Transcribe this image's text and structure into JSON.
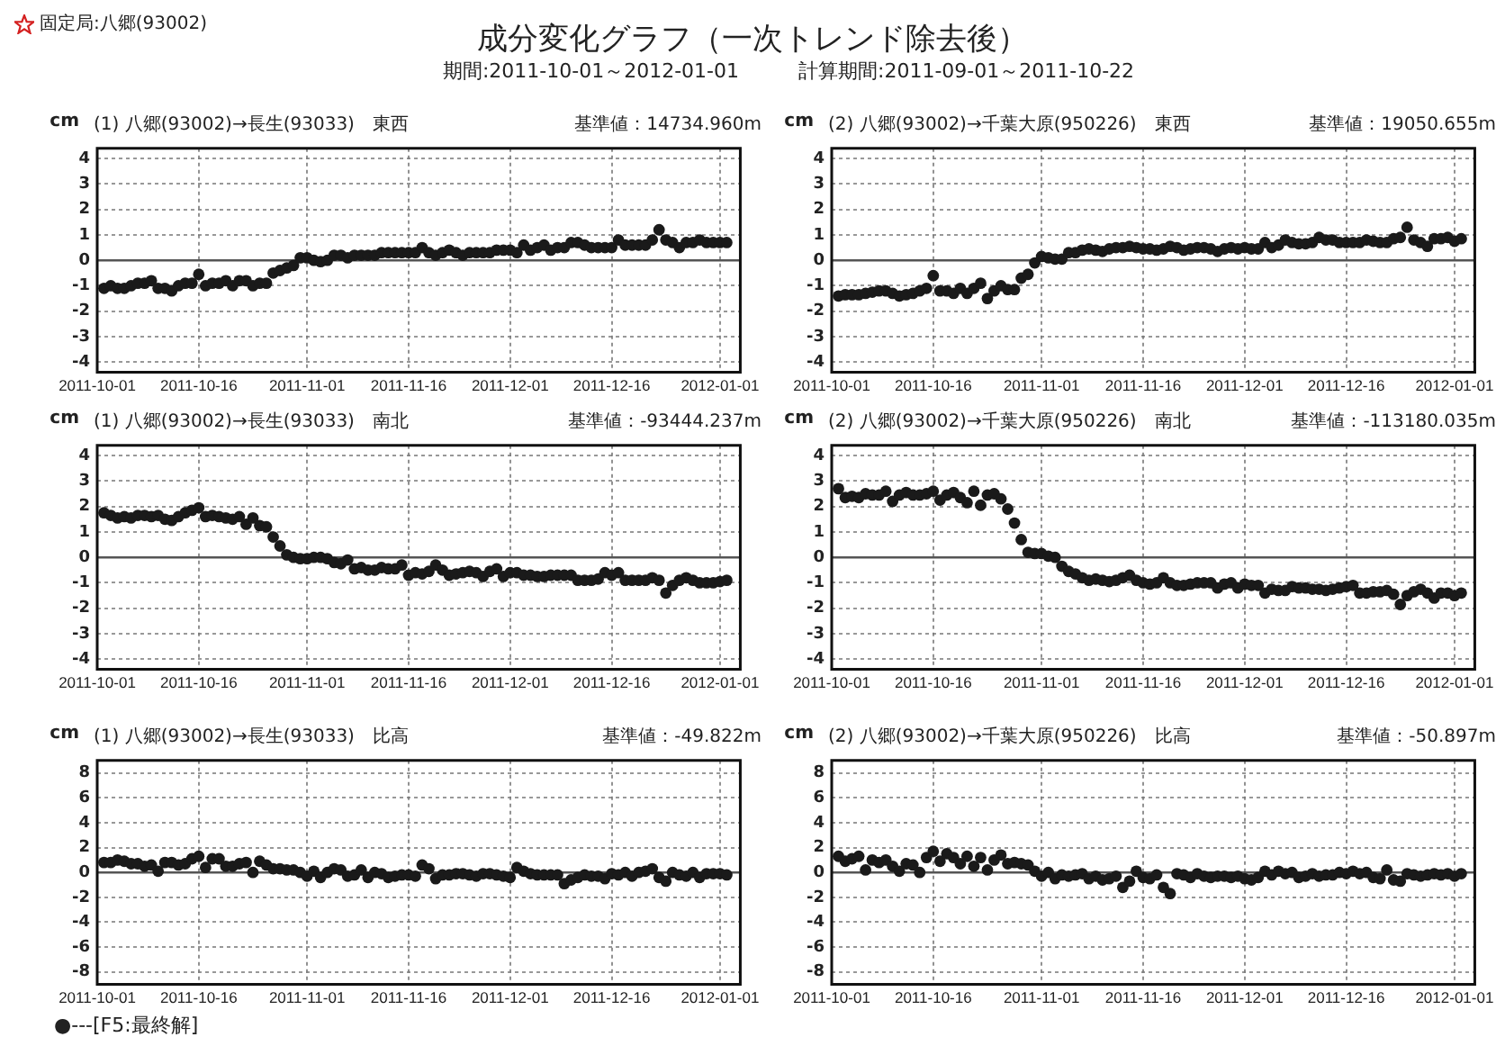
{
  "chart_data": [
    {
      "type": "other",
      "title": "成分変化グラフ（一次トレンド除去後）",
      "subtitle": "期間:2011-10-01～2012-01-01　　　計算期間:2011-09-01～2011-10-22",
      "annotations": [
        "固定局:八郷(93002)",
        "●---[F5:最終解]"
      ]
    },
    {
      "type": "scatter",
      "title": "(1) 八郷(93002)→長生(93033)　東西",
      "subtitle": "基準値：14734.960m",
      "ylabel": "cm",
      "color": "#1a1a1a",
      "marker": "circle",
      "grid": true,
      "ref_lines": [
        {
          "axis": "y",
          "value": 0,
          "color": "#555555"
        }
      ],
      "xlim": [
        "2011-10-01",
        "2012-01-04"
      ],
      "xticks": [
        "2011-10-01",
        "2011-10-16",
        "2011-11-01",
        "2011-11-16",
        "2011-12-01",
        "2011-12-16",
        "2012-01-01"
      ],
      "ylim": [
        -4.4,
        4.4
      ],
      "yticks": [
        -4,
        -3,
        -2,
        -1,
        0,
        1,
        2,
        3,
        4
      ],
      "x": [
        "2011-10-02",
        "2011-10-03",
        "2011-10-04",
        "2011-10-05",
        "2011-10-06",
        "2011-10-07",
        "2011-10-08",
        "2011-10-09",
        "2011-10-10",
        "2011-10-11",
        "2011-10-12",
        "2011-10-13",
        "2011-10-14",
        "2011-10-15",
        "2011-10-16",
        "2011-10-17",
        "2011-10-18",
        "2011-10-19",
        "2011-10-20",
        "2011-10-21",
        "2011-10-22",
        "2011-10-23",
        "2011-10-24",
        "2011-10-25",
        "2011-10-26",
        "2011-10-27",
        "2011-10-28",
        "2011-10-29",
        "2011-10-30",
        "2011-10-31",
        "2011-11-01",
        "2011-11-02",
        "2011-11-03",
        "2011-11-04",
        "2011-11-05",
        "2011-11-06",
        "2011-11-07",
        "2011-11-08",
        "2011-11-09",
        "2011-11-10",
        "2011-11-11",
        "2011-11-12",
        "2011-11-13",
        "2011-11-14",
        "2011-11-15",
        "2011-11-16",
        "2011-11-17",
        "2011-11-18",
        "2011-11-19",
        "2011-11-20",
        "2011-11-21",
        "2011-11-22",
        "2011-11-23",
        "2011-11-24",
        "2011-11-25",
        "2011-11-26",
        "2011-11-27",
        "2011-11-28",
        "2011-11-29",
        "2011-11-30",
        "2011-12-01",
        "2011-12-02",
        "2011-12-03",
        "2011-12-04",
        "2011-12-05",
        "2011-12-06",
        "2011-12-07",
        "2011-12-08",
        "2011-12-09",
        "2011-12-10",
        "2011-12-11",
        "2011-12-12",
        "2011-12-13",
        "2011-12-14",
        "2011-12-15",
        "2011-12-16",
        "2011-12-17",
        "2011-12-18",
        "2011-12-19",
        "2011-12-20",
        "2011-12-21",
        "2011-12-22",
        "2011-12-23",
        "2011-12-24",
        "2011-12-25",
        "2011-12-26",
        "2011-12-27",
        "2011-12-28",
        "2011-12-29",
        "2011-12-30",
        "2011-12-31",
        "2012-01-01",
        "2012-01-02"
      ],
      "values": [
        -1.1,
        -1.0,
        -1.1,
        -1.1,
        -1.0,
        -0.9,
        -0.9,
        -0.8,
        -1.1,
        -1.1,
        -1.2,
        -1.0,
        -0.9,
        -0.9,
        -0.55,
        -1.0,
        -0.9,
        -0.9,
        -0.8,
        -1.0,
        -0.8,
        -0.8,
        -1.0,
        -0.9,
        -0.9,
        -0.5,
        -0.4,
        -0.3,
        -0.2,
        0.1,
        0.1,
        0.0,
        -0.05,
        0.0,
        0.2,
        0.2,
        0.1,
        0.2,
        0.2,
        0.2,
        0.2,
        0.3,
        0.3,
        0.3,
        0.3,
        0.3,
        0.3,
        0.5,
        0.3,
        0.2,
        0.3,
        0.4,
        0.3,
        0.2,
        0.3,
        0.3,
        0.3,
        0.3,
        0.4,
        0.4,
        0.4,
        0.3,
        0.6,
        0.4,
        0.5,
        0.6,
        0.4,
        0.5,
        0.5,
        0.7,
        0.7,
        0.6,
        0.5,
        0.5,
        0.5,
        0.5,
        0.8,
        0.6,
        0.6,
        0.6,
        0.6,
        0.8,
        1.2,
        0.8,
        0.7,
        0.5,
        0.7,
        0.7,
        0.8,
        0.7,
        0.7,
        0.7,
        0.7
      ]
    },
    {
      "type": "scatter",
      "title": "(2) 八郷(93002)→千葉大原(950226)　東西",
      "subtitle": "基準値：19050.655m",
      "ylabel": "cm",
      "color": "#1a1a1a",
      "marker": "circle",
      "grid": true,
      "ref_lines": [
        {
          "axis": "y",
          "value": 0,
          "color": "#555555"
        }
      ],
      "xlim": [
        "2011-10-01",
        "2012-01-04"
      ],
      "xticks": [
        "2011-10-01",
        "2011-10-16",
        "2011-11-01",
        "2011-11-16",
        "2011-12-01",
        "2011-12-16",
        "2012-01-01"
      ],
      "ylim": [
        -4.4,
        4.4
      ],
      "yticks": [
        -4,
        -3,
        -2,
        -1,
        0,
        1,
        2,
        3,
        4
      ],
      "x": [
        "2011-10-02",
        "2011-10-03",
        "2011-10-04",
        "2011-10-05",
        "2011-10-06",
        "2011-10-07",
        "2011-10-08",
        "2011-10-09",
        "2011-10-10",
        "2011-10-11",
        "2011-10-12",
        "2011-10-13",
        "2011-10-14",
        "2011-10-15",
        "2011-10-16",
        "2011-10-17",
        "2011-10-18",
        "2011-10-19",
        "2011-10-20",
        "2011-10-21",
        "2011-10-22",
        "2011-10-23",
        "2011-10-24",
        "2011-10-25",
        "2011-10-26",
        "2011-10-27",
        "2011-10-28",
        "2011-10-29",
        "2011-10-30",
        "2011-10-31",
        "2011-11-01",
        "2011-11-02",
        "2011-11-03",
        "2011-11-04",
        "2011-11-05",
        "2011-11-06",
        "2011-11-07",
        "2011-11-08",
        "2011-11-09",
        "2011-11-10",
        "2011-11-11",
        "2011-11-12",
        "2011-11-13",
        "2011-11-14",
        "2011-11-15",
        "2011-11-16",
        "2011-11-17",
        "2011-11-18",
        "2011-11-19",
        "2011-11-20",
        "2011-11-21",
        "2011-11-22",
        "2011-11-23",
        "2011-11-24",
        "2011-11-25",
        "2011-11-26",
        "2011-11-27",
        "2011-11-28",
        "2011-11-29",
        "2011-11-30",
        "2011-12-01",
        "2011-12-02",
        "2011-12-03",
        "2011-12-04",
        "2011-12-05",
        "2011-12-06",
        "2011-12-07",
        "2011-12-08",
        "2011-12-09",
        "2011-12-10",
        "2011-12-11",
        "2011-12-12",
        "2011-12-13",
        "2011-12-14",
        "2011-12-15",
        "2011-12-16",
        "2011-12-17",
        "2011-12-18",
        "2011-12-19",
        "2011-12-20",
        "2011-12-21",
        "2011-12-22",
        "2011-12-23",
        "2011-12-24",
        "2011-12-25",
        "2011-12-26",
        "2011-12-27",
        "2011-12-28",
        "2011-12-29",
        "2011-12-30",
        "2011-12-31",
        "2012-01-01",
        "2012-01-02"
      ],
      "values": [
        -1.4,
        -1.35,
        -1.35,
        -1.35,
        -1.3,
        -1.25,
        -1.2,
        -1.2,
        -1.3,
        -1.4,
        -1.35,
        -1.3,
        -1.2,
        -1.1,
        -0.6,
        -1.2,
        -1.2,
        -1.3,
        -1.1,
        -1.3,
        -1.1,
        -0.9,
        -1.5,
        -1.2,
        -1.0,
        -1.15,
        -1.15,
        -0.7,
        -0.55,
        -0.1,
        0.15,
        0.1,
        0.05,
        0.05,
        0.3,
        0.3,
        0.4,
        0.45,
        0.4,
        0.35,
        0.45,
        0.5,
        0.5,
        0.55,
        0.5,
        0.45,
        0.45,
        0.4,
        0.45,
        0.55,
        0.5,
        0.4,
        0.45,
        0.5,
        0.5,
        0.45,
        0.35,
        0.45,
        0.5,
        0.45,
        0.5,
        0.45,
        0.45,
        0.7,
        0.5,
        0.6,
        0.8,
        0.7,
        0.65,
        0.65,
        0.7,
        0.9,
        0.8,
        0.8,
        0.7,
        0.7,
        0.7,
        0.7,
        0.8,
        0.75,
        0.7,
        0.7,
        0.85,
        0.9,
        1.3,
        0.8,
        0.7,
        0.55,
        0.85,
        0.85,
        0.9,
        0.75,
        0.85
      ]
    },
    {
      "type": "scatter",
      "title": "(1) 八郷(93002)→長生(93033)　南北",
      "subtitle": "基準値：-93444.237m",
      "ylabel": "cm",
      "color": "#1a1a1a",
      "marker": "circle",
      "grid": true,
      "ref_lines": [
        {
          "axis": "y",
          "value": 0,
          "color": "#555555"
        }
      ],
      "xlim": [
        "2011-10-01",
        "2012-01-04"
      ],
      "xticks": [
        "2011-10-01",
        "2011-10-16",
        "2011-11-01",
        "2011-11-16",
        "2011-12-01",
        "2011-12-16",
        "2012-01-01"
      ],
      "ylim": [
        -4.4,
        4.4
      ],
      "yticks": [
        -4,
        -3,
        -2,
        -1,
        0,
        1,
        2,
        3,
        4
      ],
      "x": [
        "2011-10-02",
        "2011-10-03",
        "2011-10-04",
        "2011-10-05",
        "2011-10-06",
        "2011-10-07",
        "2011-10-08",
        "2011-10-09",
        "2011-10-10",
        "2011-10-11",
        "2011-10-12",
        "2011-10-13",
        "2011-10-14",
        "2011-10-15",
        "2011-10-16",
        "2011-10-17",
        "2011-10-18",
        "2011-10-19",
        "2011-10-20",
        "2011-10-21",
        "2011-10-22",
        "2011-10-23",
        "2011-10-24",
        "2011-10-25",
        "2011-10-26",
        "2011-10-27",
        "2011-10-28",
        "2011-10-29",
        "2011-10-30",
        "2011-10-31",
        "2011-11-01",
        "2011-11-02",
        "2011-11-03",
        "2011-11-04",
        "2011-11-05",
        "2011-11-06",
        "2011-11-07",
        "2011-11-08",
        "2011-11-09",
        "2011-11-10",
        "2011-11-11",
        "2011-11-12",
        "2011-11-13",
        "2011-11-14",
        "2011-11-15",
        "2011-11-16",
        "2011-11-17",
        "2011-11-18",
        "2011-11-19",
        "2011-11-20",
        "2011-11-21",
        "2011-11-22",
        "2011-11-23",
        "2011-11-24",
        "2011-11-25",
        "2011-11-26",
        "2011-11-27",
        "2011-11-28",
        "2011-11-29",
        "2011-11-30",
        "2011-12-01",
        "2011-12-02",
        "2011-12-03",
        "2011-12-04",
        "2011-12-05",
        "2011-12-06",
        "2011-12-07",
        "2011-12-08",
        "2011-12-09",
        "2011-12-10",
        "2011-12-11",
        "2011-12-12",
        "2011-12-13",
        "2011-12-14",
        "2011-12-15",
        "2011-12-16",
        "2011-12-17",
        "2011-12-18",
        "2011-12-19",
        "2011-12-20",
        "2011-12-21",
        "2011-12-22",
        "2011-12-23",
        "2011-12-24",
        "2011-12-25",
        "2011-12-26",
        "2011-12-27",
        "2011-12-28",
        "2011-12-29",
        "2011-12-30",
        "2011-12-31",
        "2012-01-01",
        "2012-01-02"
      ],
      "values": [
        1.75,
        1.65,
        1.55,
        1.6,
        1.55,
        1.65,
        1.65,
        1.6,
        1.65,
        1.5,
        1.45,
        1.6,
        1.75,
        1.85,
        1.95,
        1.6,
        1.65,
        1.6,
        1.55,
        1.5,
        1.6,
        1.3,
        1.55,
        1.25,
        1.2,
        0.8,
        0.45,
        0.1,
        0.0,
        -0.05,
        -0.05,
        0.0,
        0.0,
        -0.05,
        -0.2,
        -0.25,
        -0.1,
        -0.45,
        -0.4,
        -0.5,
        -0.5,
        -0.4,
        -0.45,
        -0.45,
        -0.3,
        -0.7,
        -0.6,
        -0.65,
        -0.55,
        -0.3,
        -0.5,
        -0.7,
        -0.65,
        -0.6,
        -0.55,
        -0.6,
        -0.75,
        -0.55,
        -0.45,
        -0.75,
        -0.6,
        -0.6,
        -0.7,
        -0.7,
        -0.75,
        -0.75,
        -0.7,
        -0.7,
        -0.7,
        -0.7,
        -0.9,
        -0.9,
        -0.9,
        -0.85,
        -0.6,
        -0.7,
        -0.6,
        -0.9,
        -0.9,
        -0.9,
        -0.9,
        -0.8,
        -0.9,
        -1.4,
        -1.1,
        -0.9,
        -0.8,
        -0.9,
        -1.0,
        -1.0,
        -1.0,
        -0.95,
        -0.9
      ]
    },
    {
      "type": "scatter",
      "title": "(2) 八郷(93002)→千葉大原(950226)　南北",
      "subtitle": "基準値：-113180.035m",
      "ylabel": "cm",
      "color": "#1a1a1a",
      "marker": "circle",
      "grid": true,
      "ref_lines": [
        {
          "axis": "y",
          "value": 0,
          "color": "#555555"
        }
      ],
      "xlim": [
        "2011-10-01",
        "2012-01-04"
      ],
      "xticks": [
        "2011-10-01",
        "2011-10-16",
        "2011-11-01",
        "2011-11-16",
        "2011-12-01",
        "2011-12-16",
        "2012-01-01"
      ],
      "ylim": [
        -4.4,
        4.4
      ],
      "yticks": [
        -4,
        -3,
        -2,
        -1,
        0,
        1,
        2,
        3,
        4
      ],
      "x": [
        "2011-10-02",
        "2011-10-03",
        "2011-10-04",
        "2011-10-05",
        "2011-10-06",
        "2011-10-07",
        "2011-10-08",
        "2011-10-09",
        "2011-10-10",
        "2011-10-11",
        "2011-10-12",
        "2011-10-13",
        "2011-10-14",
        "2011-10-15",
        "2011-10-16",
        "2011-10-17",
        "2011-10-18",
        "2011-10-19",
        "2011-10-20",
        "2011-10-21",
        "2011-10-22",
        "2011-10-23",
        "2011-10-24",
        "2011-10-25",
        "2011-10-26",
        "2011-10-27",
        "2011-10-28",
        "2011-10-29",
        "2011-10-30",
        "2011-10-31",
        "2011-11-01",
        "2011-11-02",
        "2011-11-03",
        "2011-11-04",
        "2011-11-05",
        "2011-11-06",
        "2011-11-07",
        "2011-11-08",
        "2011-11-09",
        "2011-11-10",
        "2011-11-11",
        "2011-11-12",
        "2011-11-13",
        "2011-11-14",
        "2011-11-15",
        "2011-11-16",
        "2011-11-17",
        "2011-11-18",
        "2011-11-19",
        "2011-11-20",
        "2011-11-21",
        "2011-11-22",
        "2011-11-23",
        "2011-11-24",
        "2011-11-25",
        "2011-11-26",
        "2011-11-27",
        "2011-11-28",
        "2011-11-29",
        "2011-11-30",
        "2011-12-01",
        "2011-12-02",
        "2011-12-03",
        "2011-12-04",
        "2011-12-05",
        "2011-12-06",
        "2011-12-07",
        "2011-12-08",
        "2011-12-09",
        "2011-12-10",
        "2011-12-11",
        "2011-12-12",
        "2011-12-13",
        "2011-12-14",
        "2011-12-15",
        "2011-12-16",
        "2011-12-17",
        "2011-12-18",
        "2011-12-19",
        "2011-12-20",
        "2011-12-21",
        "2011-12-22",
        "2011-12-23",
        "2011-12-24",
        "2011-12-25",
        "2011-12-26",
        "2011-12-27",
        "2011-12-28",
        "2011-12-29",
        "2011-12-30",
        "2011-12-31",
        "2012-01-01",
        "2012-01-02"
      ],
      "values": [
        2.7,
        2.35,
        2.4,
        2.35,
        2.5,
        2.45,
        2.45,
        2.6,
        2.2,
        2.45,
        2.55,
        2.45,
        2.45,
        2.5,
        2.6,
        2.25,
        2.45,
        2.55,
        2.35,
        2.15,
        2.6,
        2.05,
        2.45,
        2.5,
        2.3,
        1.9,
        1.35,
        0.7,
        0.2,
        0.15,
        0.15,
        0.05,
        0.0,
        -0.35,
        -0.55,
        -0.65,
        -0.8,
        -0.9,
        -0.85,
        -0.9,
        -0.95,
        -0.9,
        -0.8,
        -0.7,
        -0.9,
        -1.0,
        -1.05,
        -1.0,
        -0.8,
        -1.0,
        -1.1,
        -1.1,
        -1.05,
        -1.0,
        -1.0,
        -1.0,
        -1.2,
        -1.05,
        -1.0,
        -1.2,
        -1.05,
        -1.1,
        -1.1,
        -1.4,
        -1.25,
        -1.3,
        -1.3,
        -1.15,
        -1.2,
        -1.2,
        -1.25,
        -1.25,
        -1.3,
        -1.25,
        -1.2,
        -1.15,
        -1.1,
        -1.4,
        -1.4,
        -1.35,
        -1.35,
        -1.3,
        -1.45,
        -1.85,
        -1.5,
        -1.35,
        -1.25,
        -1.4,
        -1.6,
        -1.4,
        -1.4,
        -1.5,
        -1.4
      ]
    },
    {
      "type": "scatter",
      "title": "(1) 八郷(93002)→長生(93033)　比高",
      "subtitle": "基準値：-49.822m",
      "ylabel": "cm",
      "color": "#1a1a1a",
      "marker": "circle",
      "grid": true,
      "ref_lines": [
        {
          "axis": "y",
          "value": 0,
          "color": "#555555"
        }
      ],
      "xlim": [
        "2011-10-01",
        "2012-01-04"
      ],
      "xticks": [
        "2011-10-01",
        "2011-10-16",
        "2011-11-01",
        "2011-11-16",
        "2011-12-01",
        "2011-12-16",
        "2012-01-01"
      ],
      "ylim": [
        -9,
        9
      ],
      "yticks": [
        -8,
        -6,
        -4,
        -2,
        0,
        2,
        4,
        6,
        8
      ],
      "x": [
        "2011-10-02",
        "2011-10-03",
        "2011-10-04",
        "2011-10-05",
        "2011-10-06",
        "2011-10-07",
        "2011-10-08",
        "2011-10-09",
        "2011-10-10",
        "2011-10-11",
        "2011-10-12",
        "2011-10-13",
        "2011-10-14",
        "2011-10-15",
        "2011-10-16",
        "2011-10-17",
        "2011-10-18",
        "2011-10-19",
        "2011-10-20",
        "2011-10-21",
        "2011-10-22",
        "2011-10-23",
        "2011-10-24",
        "2011-10-25",
        "2011-10-26",
        "2011-10-27",
        "2011-10-28",
        "2011-10-29",
        "2011-10-30",
        "2011-10-31",
        "2011-11-01",
        "2011-11-02",
        "2011-11-03",
        "2011-11-04",
        "2011-11-05",
        "2011-11-06",
        "2011-11-07",
        "2011-11-08",
        "2011-11-09",
        "2011-11-10",
        "2011-11-11",
        "2011-11-12",
        "2011-11-13",
        "2011-11-14",
        "2011-11-15",
        "2011-11-16",
        "2011-11-17",
        "2011-11-18",
        "2011-11-19",
        "2011-11-20",
        "2011-11-21",
        "2011-11-22",
        "2011-11-23",
        "2011-11-24",
        "2011-11-25",
        "2011-11-26",
        "2011-11-27",
        "2011-11-28",
        "2011-11-29",
        "2011-11-30",
        "2011-12-01",
        "2011-12-02",
        "2011-12-03",
        "2011-12-04",
        "2011-12-05",
        "2011-12-06",
        "2011-12-07",
        "2011-12-08",
        "2011-12-09",
        "2011-12-10",
        "2011-12-11",
        "2011-12-12",
        "2011-12-13",
        "2011-12-14",
        "2011-12-15",
        "2011-12-16",
        "2011-12-17",
        "2011-12-18",
        "2011-12-19",
        "2011-12-20",
        "2011-12-21",
        "2011-12-22",
        "2011-12-23",
        "2011-12-24",
        "2011-12-25",
        "2011-12-26",
        "2011-12-27",
        "2011-12-28",
        "2011-12-29",
        "2011-12-30",
        "2011-12-31",
        "2012-01-01",
        "2012-01-02"
      ],
      "values": [
        0.8,
        0.8,
        1.0,
        0.9,
        0.7,
        0.7,
        0.5,
        0.6,
        0.1,
        0.8,
        0.8,
        0.6,
        0.7,
        1.1,
        1.3,
        0.4,
        1.1,
        1.1,
        0.5,
        0.5,
        0.7,
        0.8,
        0.0,
        0.9,
        0.6,
        0.3,
        0.3,
        0.2,
        0.2,
        0.0,
        -0.3,
        0.1,
        -0.4,
        0.0,
        0.3,
        0.2,
        -0.3,
        -0.2,
        0.2,
        -0.4,
        0.0,
        -0.1,
        -0.4,
        -0.3,
        -0.2,
        -0.2,
        -0.3,
        0.6,
        0.3,
        -0.5,
        -0.2,
        -0.2,
        -0.1,
        -0.1,
        -0.2,
        -0.3,
        -0.1,
        -0.1,
        -0.2,
        -0.3,
        -0.4,
        0.4,
        0.1,
        -0.1,
        -0.2,
        -0.2,
        -0.2,
        -0.2,
        -0.9,
        -0.6,
        -0.4,
        -0.2,
        -0.3,
        -0.3,
        -0.5,
        -0.1,
        -0.2,
        0.0,
        -0.3,
        0.0,
        0.1,
        0.3,
        -0.4,
        -0.7,
        0.0,
        -0.2,
        -0.3,
        0.0,
        -0.4,
        -0.1,
        -0.1,
        -0.1,
        -0.2
      ]
    },
    {
      "type": "scatter",
      "title": "(2) 八郷(93002)→千葉大原(950226)　比高",
      "subtitle": "基準値：-50.897m",
      "ylabel": "cm",
      "color": "#1a1a1a",
      "marker": "circle",
      "grid": true,
      "ref_lines": [
        {
          "axis": "y",
          "value": 0,
          "color": "#555555"
        }
      ],
      "xlim": [
        "2011-10-01",
        "2012-01-04"
      ],
      "xticks": [
        "2011-10-01",
        "2011-10-16",
        "2011-11-01",
        "2011-11-16",
        "2011-12-01",
        "2011-12-16",
        "2012-01-01"
      ],
      "ylim": [
        -9,
        9
      ],
      "yticks": [
        -8,
        -6,
        -4,
        -2,
        0,
        2,
        4,
        6,
        8
      ],
      "x": [
        "2011-10-02",
        "2011-10-03",
        "2011-10-04",
        "2011-10-05",
        "2011-10-06",
        "2011-10-07",
        "2011-10-08",
        "2011-10-09",
        "2011-10-10",
        "2011-10-11",
        "2011-10-12",
        "2011-10-13",
        "2011-10-14",
        "2011-10-15",
        "2011-10-16",
        "2011-10-17",
        "2011-10-18",
        "2011-10-19",
        "2011-10-20",
        "2011-10-21",
        "2011-10-22",
        "2011-10-23",
        "2011-10-24",
        "2011-10-25",
        "2011-10-26",
        "2011-10-27",
        "2011-10-28",
        "2011-10-29",
        "2011-10-30",
        "2011-10-31",
        "2011-11-01",
        "2011-11-02",
        "2011-11-03",
        "2011-11-04",
        "2011-11-05",
        "2011-11-06",
        "2011-11-07",
        "2011-11-08",
        "2011-11-09",
        "2011-11-10",
        "2011-11-11",
        "2011-11-12",
        "2011-11-13",
        "2011-11-14",
        "2011-11-15",
        "2011-11-16",
        "2011-11-17",
        "2011-11-18",
        "2011-11-19",
        "2011-11-20",
        "2011-11-21",
        "2011-11-22",
        "2011-11-23",
        "2011-11-24",
        "2011-11-25",
        "2011-11-26",
        "2011-11-27",
        "2011-11-28",
        "2011-11-29",
        "2011-11-30",
        "2011-12-01",
        "2011-12-02",
        "2011-12-03",
        "2011-12-04",
        "2011-12-05",
        "2011-12-06",
        "2011-12-07",
        "2011-12-08",
        "2011-12-09",
        "2011-12-10",
        "2011-12-11",
        "2011-12-12",
        "2011-12-13",
        "2011-12-14",
        "2011-12-15",
        "2011-12-16",
        "2011-12-17",
        "2011-12-18",
        "2011-12-19",
        "2011-12-20",
        "2011-12-21",
        "2011-12-22",
        "2011-12-23",
        "2011-12-24",
        "2011-12-25",
        "2011-12-26",
        "2011-12-27",
        "2011-12-28",
        "2011-12-29",
        "2011-12-30",
        "2011-12-31",
        "2012-01-01",
        "2012-01-02"
      ],
      "values": [
        1.3,
        0.9,
        1.1,
        1.3,
        0.2,
        1.0,
        0.8,
        1.0,
        0.5,
        0.1,
        0.7,
        0.6,
        0.0,
        1.2,
        1.7,
        0.9,
        1.5,
        1.2,
        0.7,
        1.3,
        0.5,
        1.2,
        0.2,
        1.0,
        1.4,
        0.7,
        0.8,
        0.7,
        0.6,
        0.1,
        -0.3,
        0.0,
        -0.5,
        -0.2,
        -0.3,
        -0.2,
        -0.1,
        -0.5,
        -0.3,
        -0.6,
        -0.5,
        -0.3,
        -1.2,
        -0.7,
        0.1,
        -0.4,
        -0.5,
        -0.2,
        -1.2,
        -1.7,
        -0.1,
        -0.2,
        -0.4,
        -0.1,
        -0.3,
        -0.4,
        -0.3,
        -0.3,
        -0.4,
        -0.3,
        -0.5,
        -0.6,
        -0.4,
        0.1,
        -0.2,
        0.1,
        -0.1,
        0.0,
        -0.4,
        -0.3,
        -0.1,
        -0.3,
        -0.2,
        -0.2,
        0.0,
        -0.1,
        0.1,
        -0.1,
        0.0,
        -0.4,
        -0.5,
        0.2,
        -0.6,
        -0.7,
        -0.1,
        -0.2,
        -0.3,
        -0.2,
        -0.1,
        -0.2,
        -0.1,
        -0.3,
        -0.1
      ]
    }
  ]
}
